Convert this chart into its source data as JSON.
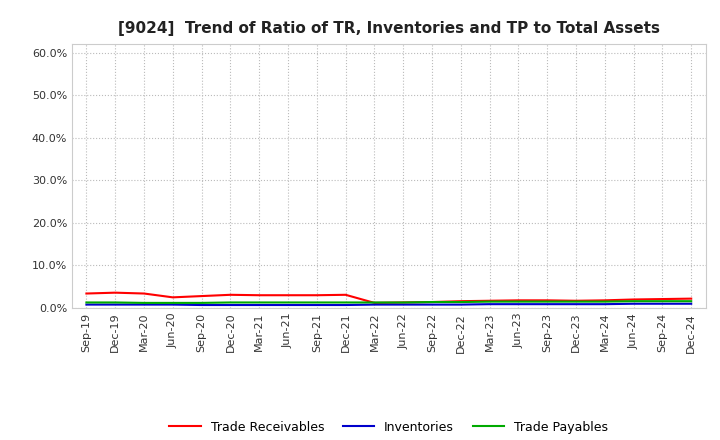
{
  "title": "[9024]  Trend of Ratio of TR, Inventories and TP to Total Assets",
  "x_labels": [
    "Sep-19",
    "Dec-19",
    "Mar-20",
    "Jun-20",
    "Sep-20",
    "Dec-20",
    "Mar-21",
    "Jun-21",
    "Sep-21",
    "Dec-21",
    "Mar-22",
    "Jun-22",
    "Sep-22",
    "Dec-22",
    "Mar-23",
    "Jun-23",
    "Sep-23",
    "Dec-23",
    "Mar-24",
    "Jun-24",
    "Sep-24",
    "Dec-24"
  ],
  "trade_receivables": [
    0.034,
    0.036,
    0.034,
    0.025,
    0.028,
    0.031,
    0.03,
    0.03,
    0.03,
    0.031,
    0.012,
    0.013,
    0.014,
    0.016,
    0.017,
    0.018,
    0.018,
    0.017,
    0.018,
    0.02,
    0.021,
    0.022
  ],
  "inventories": [
    0.008,
    0.008,
    0.008,
    0.008,
    0.007,
    0.007,
    0.007,
    0.007,
    0.007,
    0.007,
    0.008,
    0.008,
    0.008,
    0.008,
    0.009,
    0.009,
    0.009,
    0.009,
    0.009,
    0.01,
    0.01,
    0.01
  ],
  "trade_payables": [
    0.013,
    0.013,
    0.012,
    0.012,
    0.012,
    0.013,
    0.013,
    0.013,
    0.013,
    0.013,
    0.013,
    0.013,
    0.014,
    0.014,
    0.015,
    0.015,
    0.015,
    0.015,
    0.015,
    0.016,
    0.016,
    0.016
  ],
  "tr_color": "#ff0000",
  "inv_color": "#0000cc",
  "tp_color": "#00aa00",
  "ylim": [
    0.0,
    0.62
  ],
  "yticks": [
    0.0,
    0.1,
    0.2,
    0.3,
    0.4,
    0.5,
    0.6
  ],
  "background_color": "#ffffff",
  "plot_bg_color": "#ffffff",
  "grid_color": "#bbbbbb",
  "legend_tr": "Trade Receivables",
  "legend_inv": "Inventories",
  "legend_tp": "Trade Payables",
  "title_fontsize": 11,
  "tick_fontsize": 8,
  "legend_fontsize": 9
}
